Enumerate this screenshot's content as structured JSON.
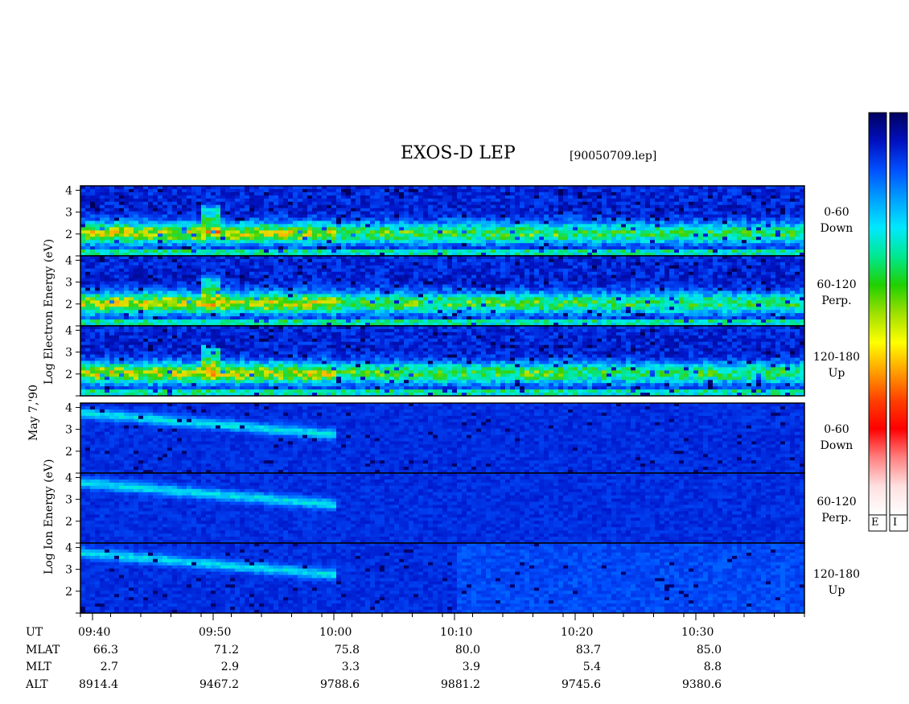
{
  "header": {
    "title": "EXOS-D LEP",
    "filename": "[90050709.lep]"
  },
  "y_labels": {
    "date": "May 7,'90",
    "electron": "Log Electron Energy (eV)",
    "ion": "Log Ion Energy (eV)"
  },
  "channels": {
    "electron": [
      {
        "range": "0-60",
        "dir": "Down"
      },
      {
        "range": "60-120",
        "dir": "Perp."
      },
      {
        "range": "120-180",
        "dir": "Up"
      }
    ],
    "ion": [
      {
        "range": "0-60",
        "dir": "Down"
      },
      {
        "range": "60-120",
        "dir": "Perp."
      },
      {
        "range": "120-180",
        "dir": "Up"
      }
    ]
  },
  "colorbars": {
    "electron_label": "E",
    "ion_label": "I",
    "colors": [
      "#000060",
      "#0010c0",
      "#0050ff",
      "#00a0ff",
      "#00e8ff",
      "#00e890",
      "#20d000",
      "#a0e000",
      "#ffff00",
      "#ffa000",
      "#ff4000",
      "#ff0000",
      "#ff8080",
      "#ffe0e0",
      "#ffffff"
    ]
  },
  "ephemeris": {
    "row_labels": [
      "UT",
      "MLAT",
      "MLT",
      "ALT"
    ],
    "columns": [
      {
        "UT": "09:40",
        "MLAT": "66.3",
        "MLT": "2.7",
        "ALT": "8914.4"
      },
      {
        "UT": "09:50",
        "MLAT": "71.2",
        "MLT": "2.9",
        "ALT": "9467.2"
      },
      {
        "UT": "10:00",
        "MLAT": "75.8",
        "MLT": "3.3",
        "ALT": "9788.6"
      },
      {
        "UT": "10:10",
        "MLAT": "80.0",
        "MLT": "3.9",
        "ALT": "9881.2"
      },
      {
        "UT": "10:20",
        "MLAT": "83.7",
        "MLT": "5.4",
        "ALT": "9745.6"
      },
      {
        "UT": "10:30",
        "MLAT": "85.0",
        "MLT": "8.8",
        "ALT": "9380.6"
      }
    ]
  },
  "chart_data": {
    "type": "heatmap",
    "title": "EXOS-D LEP",
    "x": {
      "label": "UT",
      "ticks": [
        "09:40",
        "09:50",
        "10:00",
        "10:10",
        "10:20",
        "10:30"
      ],
      "range_minutes": [
        -1,
        59
      ]
    },
    "y": {
      "ticks": [
        "1",
        "2",
        "3",
        "4"
      ],
      "range": [
        1,
        4.2
      ],
      "scale": "log10 energy (eV)"
    },
    "panels": [
      {
        "group": "electron",
        "channel": "0-60 Down"
      },
      {
        "group": "electron",
        "channel": "60-120 Perp."
      },
      {
        "group": "electron",
        "channel": "120-180 Up"
      },
      {
        "group": "ion",
        "channel": "0-60 Down"
      },
      {
        "group": "ion",
        "channel": "60-120 Perp."
      },
      {
        "group": "ion",
        "channel": "120-180 Up"
      }
    ],
    "grid": false
  }
}
